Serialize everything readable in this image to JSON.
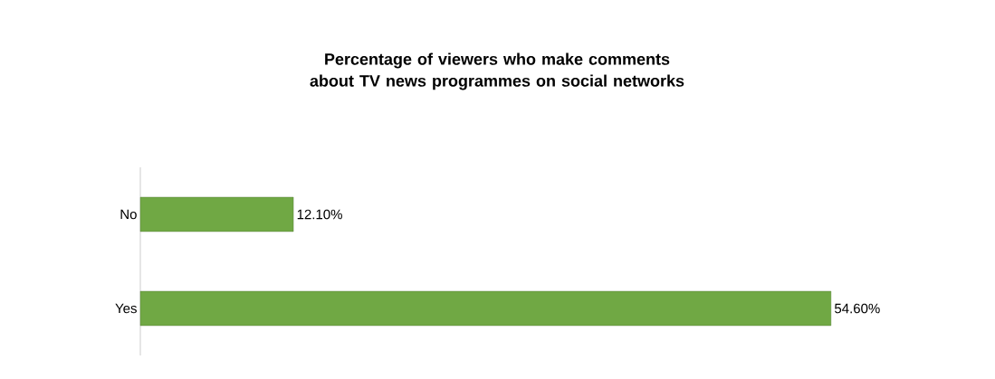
{
  "chart_data": {
    "type": "bar",
    "orientation": "horizontal",
    "title": "Percentage of viewers who make comments about TV news programmes on social networks",
    "categories": [
      "No",
      "Yes"
    ],
    "values": [
      12.1,
      54.6
    ],
    "value_labels": [
      "12.10%",
      "54.60%"
    ],
    "color": "#70a844"
  }
}
